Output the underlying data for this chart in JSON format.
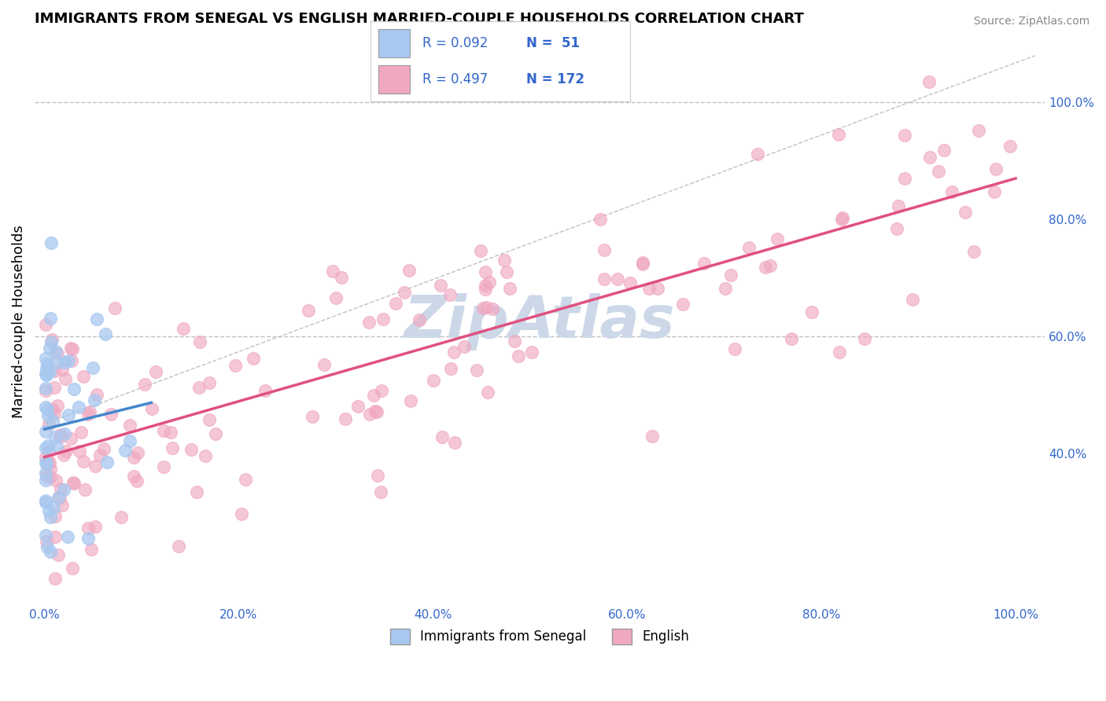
{
  "title": "IMMIGRANTS FROM SENEGAL VS ENGLISH MARRIED-COUPLE HOUSEHOLDS CORRELATION CHART",
  "source": "Source: ZipAtlas.com",
  "ylabel": "Married-couple Households",
  "legend_label1": "Immigrants from Senegal",
  "legend_label2": "English",
  "R1": 0.092,
  "N1": 51,
  "R2": 0.497,
  "N2": 172,
  "color_blue": "#a8c8f0",
  "color_pink": "#f0a8c0",
  "line_blue": "#4488cc",
  "line_pink": "#e05080",
  "watermark_color": "#ccd8e8",
  "right_yticks": [
    0.4,
    0.6,
    0.8,
    1.0
  ],
  "right_ytick_labels": [
    "40.0%",
    "60.0%",
    "80.0%",
    "100.0%"
  ],
  "xtick_vals": [
    0.0,
    0.2,
    0.4,
    0.6,
    0.8,
    1.0
  ],
  "xtick_labels": [
    "0.0%",
    "20.0%",
    "40.0%",
    "60.0%",
    "80.0%",
    "100.0%"
  ]
}
